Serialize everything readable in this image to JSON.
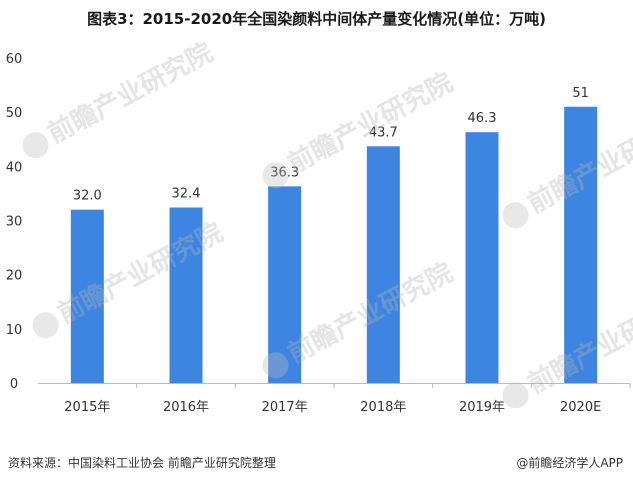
{
  "title": "图表3：2015-2020年全国染颜料中间体产量变化情况(单位：万吨)",
  "source": "资料来源：中国染料工业协会 前瞻产业研究院整理",
  "credit": "@前瞻经济学人APP",
  "watermark": "前瞻产业研究院",
  "colors": {
    "bar": "#3d85e0",
    "axis": "#bbbbbb",
    "label": "#333333"
  },
  "chart_data": {
    "type": "bar",
    "categories": [
      "2015年",
      "2016年",
      "2017年",
      "2018年",
      "2019年",
      "2020E"
    ],
    "values": [
      32.0,
      32.4,
      36.3,
      43.7,
      46.3,
      51
    ],
    "value_labels": [
      "32.0",
      "32.4",
      "36.3",
      "43.7",
      "46.3",
      "51"
    ],
    "yticks": [
      "0",
      "10",
      "20",
      "30",
      "40",
      "50",
      "60"
    ],
    "ylim": [
      0,
      60
    ],
    "grid": false,
    "legend": "none"
  }
}
